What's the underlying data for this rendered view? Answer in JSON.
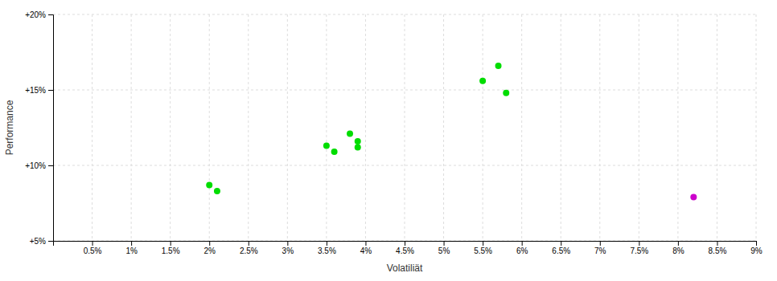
{
  "chart_data": {
    "type": "scatter",
    "xlabel": "Volatiliät",
    "ylabel": "Performance",
    "xlim": [
      0.0,
      0.09
    ],
    "ylim": [
      0.05,
      0.2
    ],
    "xticks": [
      {
        "value": 0.005,
        "label": "0.5%"
      },
      {
        "value": 0.01,
        "label": "1%"
      },
      {
        "value": 0.015,
        "label": "1.5%"
      },
      {
        "value": 0.02,
        "label": "2%"
      },
      {
        "value": 0.025,
        "label": "2.5%"
      },
      {
        "value": 0.03,
        "label": "3%"
      },
      {
        "value": 0.035,
        "label": "3.5%"
      },
      {
        "value": 0.04,
        "label": "4%"
      },
      {
        "value": 0.045,
        "label": "4.5%"
      },
      {
        "value": 0.05,
        "label": "5%"
      },
      {
        "value": 0.055,
        "label": "5.5%"
      },
      {
        "value": 0.06,
        "label": "6%"
      },
      {
        "value": 0.065,
        "label": "6.5%"
      },
      {
        "value": 0.07,
        "label": "7%"
      },
      {
        "value": 0.075,
        "label": "7.5%"
      },
      {
        "value": 0.08,
        "label": "8%"
      },
      {
        "value": 0.085,
        "label": "8.5%"
      },
      {
        "value": 0.09,
        "label": "9%"
      }
    ],
    "yticks": [
      {
        "value": 0.05,
        "label": "+5%"
      },
      {
        "value": 0.1,
        "label": "+10%"
      },
      {
        "value": 0.15,
        "label": "+15%"
      },
      {
        "value": 0.2,
        "label": "+20%"
      }
    ],
    "grid": true,
    "series": [
      {
        "color": "#00dd00",
        "x": [
          0.02,
          0.021,
          0.035,
          0.036,
          0.038,
          0.039,
          0.039,
          0.055,
          0.057,
          0.058
        ],
        "values": [
          0.087,
          0.083,
          0.113,
          0.109,
          0.121,
          0.116,
          0.112,
          0.156,
          0.166,
          0.148
        ]
      },
      {
        "color": "#cc00cc",
        "x": [
          0.082
        ],
        "values": [
          0.079
        ]
      }
    ]
  }
}
